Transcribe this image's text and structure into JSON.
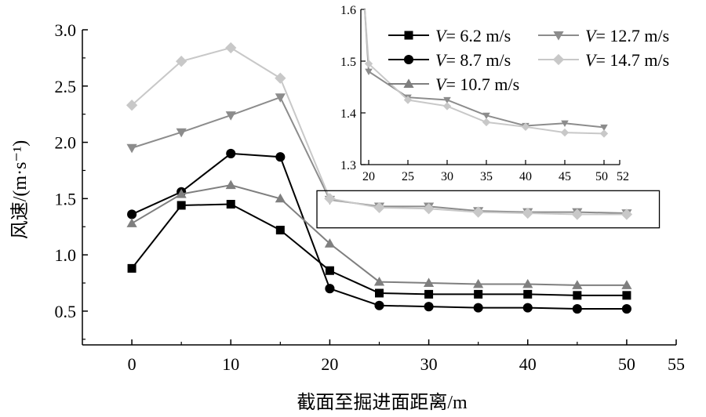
{
  "chart_data": {
    "type": "line",
    "xlabel": "截面至掘进面距离/m",
    "ylabel": "风速/(m·s⁻¹)",
    "xlim": [
      -5,
      55
    ],
    "ylim": [
      0.2,
      3.0
    ],
    "x_ticks": [
      "0",
      "10",
      "20",
      "30",
      "40",
      "50",
      "55"
    ],
    "y_ticks": [
      "0.5",
      "1.0",
      "1.5",
      "2.0",
      "2.5",
      "3.0"
    ],
    "x": [
      0,
      5,
      10,
      15,
      20,
      25,
      30,
      35,
      40,
      45,
      50
    ],
    "series": [
      {
        "name": "V= 6.2 m/s",
        "values": [
          0.88,
          1.44,
          1.45,
          1.22,
          0.86,
          0.66,
          0.65,
          0.65,
          0.65,
          0.64,
          0.64
        ],
        "color": "#000000",
        "marker": "square"
      },
      {
        "name": "V= 8.7 m/s",
        "values": [
          1.36,
          1.56,
          1.9,
          1.87,
          0.7,
          0.55,
          0.54,
          0.53,
          0.53,
          0.52,
          0.52
        ],
        "color": "#000000",
        "marker": "circle"
      },
      {
        "name": "V= 10.7 m/s",
        "values": [
          1.28,
          1.54,
          1.62,
          1.5,
          1.1,
          0.76,
          0.75,
          0.74,
          0.74,
          0.73,
          0.73
        ],
        "color": "#7f7f7f",
        "marker": "triangle-up"
      },
      {
        "name": "V= 12.7 m/s",
        "values": [
          1.95,
          2.09,
          2.24,
          2.4,
          1.49,
          1.43,
          1.43,
          1.39,
          1.38,
          1.38,
          1.37
        ],
        "color": "#8c8c8c",
        "marker": "triangle-down"
      },
      {
        "name": "V= 14.7 m/s",
        "values": [
          2.33,
          2.72,
          2.84,
          2.57,
          1.5,
          1.42,
          1.41,
          1.38,
          1.37,
          1.36,
          1.36
        ],
        "color": "#c8c8c8",
        "marker": "diamond"
      }
    ],
    "legend_position": "inside top-right",
    "inset": {
      "xlim": [
        19,
        52
      ],
      "ylim": [
        1.3,
        1.6
      ],
      "x_ticks": [
        "20",
        "25",
        "30",
        "35",
        "40",
        "45",
        "50",
        "52"
      ],
      "y_ticks": [
        "1.3",
        "1.4",
        "1.5",
        "1.6"
      ],
      "x": [
        20,
        25,
        30,
        35,
        40,
        45,
        50
      ],
      "series": [
        {
          "name": "V= 12.7 m/s",
          "values": [
            1.48,
            1.43,
            1.425,
            1.395,
            1.375,
            1.38,
            1.372
          ],
          "color": "#8c8c8c",
          "marker": "triangle-down",
          "lead_in": [
            19.5,
            1.6
          ]
        },
        {
          "name": "V= 14.7 m/s",
          "values": [
            1.495,
            1.425,
            1.413,
            1.382,
            1.373,
            1.362,
            1.36
          ],
          "color": "#c8c8c8",
          "marker": "diamond",
          "lead_in": [
            19.5,
            1.6
          ]
        }
      ]
    }
  }
}
